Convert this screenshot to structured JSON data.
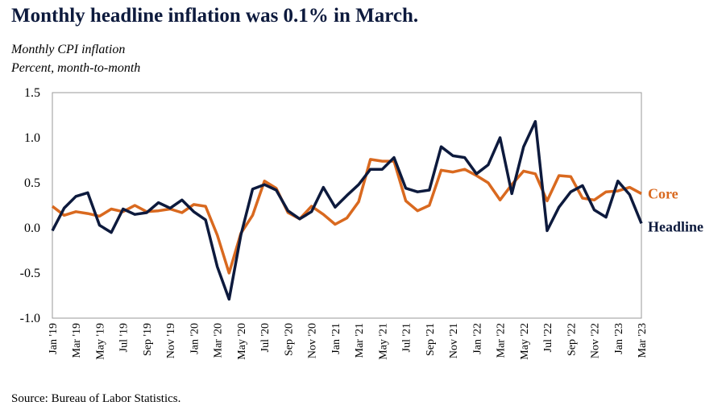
{
  "title": "Monthly headline inflation was 0.1% in March.",
  "subtitle": "Monthly CPI inflation",
  "units": "Percent, month-to-month",
  "source": "Source: Bureau of Labor Statistics.",
  "chart_data": {
    "type": "line",
    "title": "Monthly headline inflation was 0.1% in March.",
    "ylim": [
      -1.0,
      1.5
    ],
    "yticks": [
      "1.5",
      "1.0",
      "0.5",
      "0.0",
      "-0.5",
      "-1.0"
    ],
    "ytick_values": [
      1.5,
      1.0,
      0.5,
      0.0,
      -0.5,
      -1.0
    ],
    "grid": false,
    "x": [
      "Jan '19",
      "Feb '19",
      "Mar '19",
      "Apr '19",
      "May '19",
      "Jun '19",
      "Jul '19",
      "Aug '19",
      "Sep '19",
      "Oct '19",
      "Nov '19",
      "Dec '19",
      "Jan '20",
      "Feb '20",
      "Mar '20",
      "Apr '20",
      "May '20",
      "Jun '20",
      "Jul '20",
      "Aug '20",
      "Sep '20",
      "Oct '20",
      "Nov '20",
      "Dec '20",
      "Jan '21",
      "Feb '21",
      "Mar '21",
      "Apr '21",
      "May '21",
      "Jun '21",
      "Jul '21",
      "Aug '21",
      "Sep '21",
      "Oct '21",
      "Nov '21",
      "Dec '21",
      "Jan '22",
      "Feb '22",
      "Mar '22",
      "Apr '22",
      "May '22",
      "Jun '22",
      "Jul '22",
      "Aug '22",
      "Sep '22",
      "Oct '22",
      "Nov '22",
      "Dec '22",
      "Jan '23",
      "Feb '23",
      "Mar '23"
    ],
    "x_tick_labels": [
      "Jan '19",
      "Mar '19",
      "May '19",
      "Jul '19",
      "Sep '19",
      "Nov '19",
      "Jan '20",
      "Mar '20",
      "May '20",
      "Jul '20",
      "Sep '20",
      "Nov '20",
      "Jan '21",
      "Mar '21",
      "May '21",
      "Jul '21",
      "Sep '21",
      "Nov '21",
      "Jan '22",
      "Mar '22",
      "May '22",
      "Jul '22",
      "Sep '22",
      "Nov '22",
      "Jan '23",
      "Mar '23"
    ],
    "series": [
      {
        "name": "Headline",
        "color": "#0d1a3d",
        "values": [
          -0.03,
          0.22,
          0.35,
          0.39,
          0.03,
          -0.05,
          0.21,
          0.15,
          0.17,
          0.28,
          0.22,
          0.31,
          0.18,
          0.09,
          -0.43,
          -0.79,
          -0.08,
          0.43,
          0.48,
          0.42,
          0.19,
          0.1,
          0.18,
          0.45,
          0.23,
          0.36,
          0.48,
          0.65,
          0.65,
          0.78,
          0.44,
          0.4,
          0.42,
          0.9,
          0.8,
          0.78,
          0.6,
          0.7,
          1.0,
          0.38,
          0.9,
          1.18,
          -0.03,
          0.23,
          0.4,
          0.47,
          0.2,
          0.12,
          0.52,
          0.37,
          0.05
        ]
      },
      {
        "name": "Core",
        "color": "#d9691f",
        "values": [
          0.24,
          0.14,
          0.18,
          0.16,
          0.13,
          0.21,
          0.18,
          0.25,
          0.18,
          0.19,
          0.21,
          0.17,
          0.26,
          0.24,
          -0.08,
          -0.5,
          -0.06,
          0.14,
          0.52,
          0.44,
          0.17,
          0.1,
          0.24,
          0.15,
          0.04,
          0.11,
          0.29,
          0.76,
          0.74,
          0.74,
          0.3,
          0.19,
          0.25,
          0.64,
          0.62,
          0.65,
          0.58,
          0.5,
          0.31,
          0.48,
          0.63,
          0.6,
          0.3,
          0.58,
          0.57,
          0.33,
          0.31,
          0.4,
          0.41,
          0.45,
          0.38
        ]
      }
    ]
  }
}
